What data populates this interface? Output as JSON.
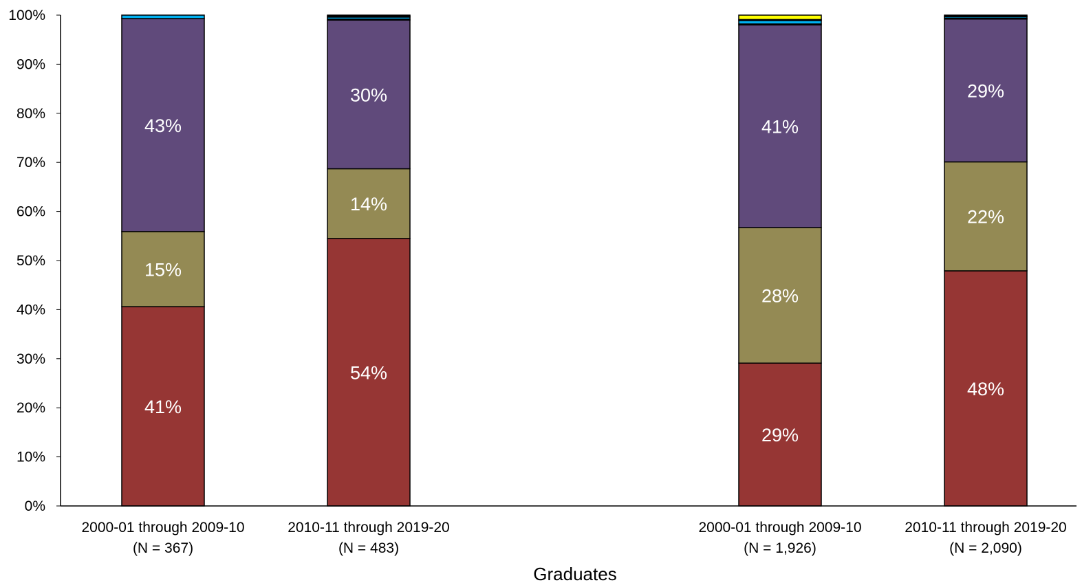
{
  "chart_data": {
    "type": "bar",
    "stacked": true,
    "xlabel": "Graduates",
    "ylabel": "",
    "ylim": [
      0,
      100
    ],
    "y_ticks": [
      "0%",
      "10%",
      "20%",
      "30%",
      "40%",
      "50%",
      "60%",
      "70%",
      "80%",
      "90%",
      "100%"
    ],
    "grid": false,
    "legend": "none",
    "categories": [
      {
        "line1": "2000-01 through 2009-10",
        "line2": "(N = 367)"
      },
      {
        "line1": "2010-11 through 2019-20",
        "line2": "(N = 483)"
      },
      {
        "line1": "2000-01 through 2009-10",
        "line2": "(N = 1,926)"
      },
      {
        "line1": "2010-11 through 2019-20",
        "line2": "(N = 2,090)"
      }
    ],
    "series": [
      {
        "color": "#963634",
        "values": [
          40.6,
          54.5,
          29.1,
          47.9
        ],
        "labels": [
          "41%",
          "54%",
          "29%",
          "48%"
        ]
      },
      {
        "color": "#948A54",
        "values": [
          15.3,
          14.2,
          27.6,
          22.2
        ],
        "labels": [
          "15%",
          "14%",
          "28%",
          "22%"
        ]
      },
      {
        "color": "#604A7B",
        "values": [
          43.4,
          30.3,
          41.3,
          29.1
        ],
        "labels": [
          "43%",
          "30%",
          "41%",
          "29%"
        ]
      },
      {
        "color": "#1F4E79",
        "values": [
          0.0,
          0.2,
          0.2,
          0.2
        ],
        "labels": [
          "",
          "",
          "",
          ""
        ]
      },
      {
        "color": "#00B0F0",
        "values": [
          0.7,
          0.4,
          0.7,
          0.3
        ],
        "labels": [
          "",
          "",
          "",
          ""
        ]
      },
      {
        "color": "#92D050",
        "values": [
          0.0,
          0.2,
          0.2,
          0.1
        ],
        "labels": [
          "",
          "",
          "",
          ""
        ]
      },
      {
        "color": "#FFFF00",
        "values": [
          0.0,
          0.2,
          0.9,
          0.2
        ],
        "labels": [
          "",
          "",
          "",
          ""
        ]
      }
    ]
  }
}
